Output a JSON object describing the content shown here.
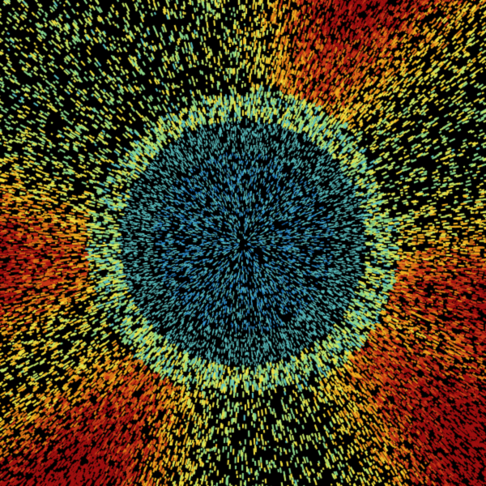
{
  "image": {
    "kind": "radar-reflectivity-sweep",
    "background_color": "#000000",
    "palette": [
      "#0a4f9e",
      "#1a7ac8",
      "#3aa0d8",
      "#5cc0c0",
      "#8ed88a",
      "#c8e868",
      "#f0e040",
      "#f0b020",
      "#e07818",
      "#c83818",
      "#a01010"
    ],
    "site_marker_color": "#000000",
    "heavy_echo_sectors_deg": [
      -65,
      15,
      40,
      125,
      175
    ]
  }
}
